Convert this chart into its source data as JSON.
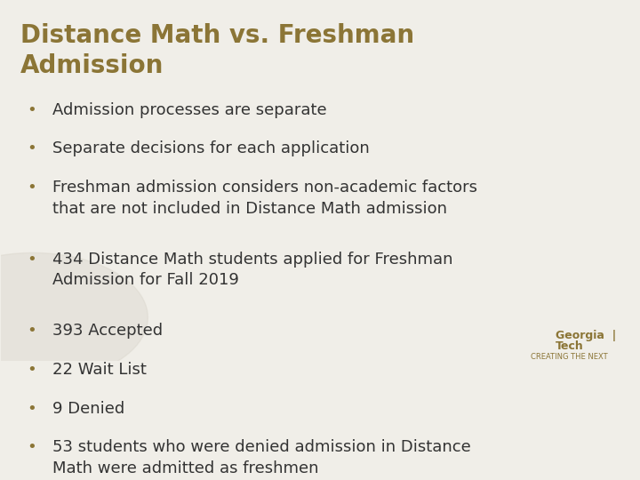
{
  "title_line1": "Distance Math vs. Freshman",
  "title_line2": "Admission",
  "title_color": "#8B7536",
  "background_color": "#F0EEE8",
  "text_color": "#333333",
  "bullet_color": "#8B7536",
  "bullet_points": [
    "Admission processes are separate",
    "Separate decisions for each application",
    "Freshman admission considers non-academic factors\nthat are not included in Distance Math admission",
    "434 Distance Math students applied for Freshman\nAdmission for Fall 2019",
    "393 Accepted",
    "22 Wait List",
    "9 Denied",
    "53 students who were denied admission in Distance\nMath were admitted as freshmen"
  ],
  "logo_text_line1": "Georgia  |",
  "logo_text_line2": "Tech",
  "logo_subtext": "CREATING THE NEXT",
  "logo_color": "#8B7536",
  "figsize": [
    7.2,
    5.4
  ],
  "dpi": 100
}
